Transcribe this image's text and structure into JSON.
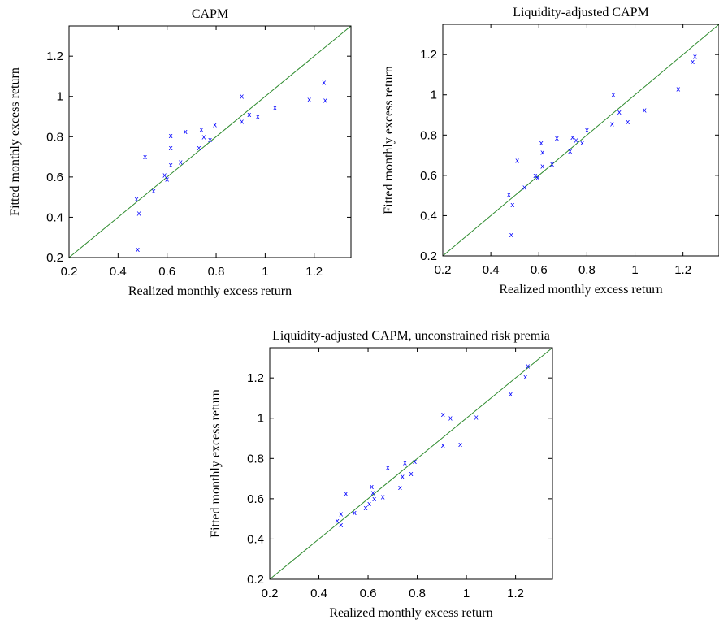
{
  "chart_data": [
    {
      "type": "scatter",
      "title": "CAPM",
      "xlabel": "Realized monthly excess return",
      "ylabel": "Fitted monthly excess return",
      "xlim": [
        0.2,
        1.35
      ],
      "ylim": [
        0.2,
        1.35
      ],
      "xticks": [
        "0.2",
        "0.4",
        "0.6",
        "0.8",
        "1",
        "1.2"
      ],
      "yticks": [
        "0.2",
        "0.4",
        "0.6",
        "0.8",
        "1",
        "1.2"
      ],
      "reference_line": "45-degree",
      "marker": "x",
      "points": [
        [
          0.475,
          0.49
        ],
        [
          0.485,
          0.42
        ],
        [
          0.48,
          0.24
        ],
        [
          0.51,
          0.7
        ],
        [
          0.545,
          0.53
        ],
        [
          0.59,
          0.61
        ],
        [
          0.6,
          0.59
        ],
        [
          0.615,
          0.66
        ],
        [
          0.615,
          0.745
        ],
        [
          0.615,
          0.805
        ],
        [
          0.655,
          0.675
        ],
        [
          0.675,
          0.825
        ],
        [
          0.73,
          0.745
        ],
        [
          0.74,
          0.835
        ],
        [
          0.75,
          0.8
        ],
        [
          0.775,
          0.785
        ],
        [
          0.795,
          0.86
        ],
        [
          0.905,
          0.875
        ],
        [
          0.905,
          1.0
        ],
        [
          0.935,
          0.91
        ],
        [
          0.97,
          0.9
        ],
        [
          1.04,
          0.945
        ],
        [
          1.18,
          0.985
        ],
        [
          1.24,
          1.07
        ],
        [
          1.245,
          0.98
        ]
      ]
    },
    {
      "type": "scatter",
      "title": "Liquidity-adjusted CAPM",
      "xlabel": "Realized monthly excess return",
      "ylabel": "Fitted monthly excess return",
      "xlim": [
        0.2,
        1.35
      ],
      "ylim": [
        0.2,
        1.35
      ],
      "xticks": [
        "0.2",
        "0.4",
        "0.6",
        "0.8",
        "1",
        "1.2"
      ],
      "yticks": [
        "0.2",
        "0.4",
        "0.6",
        "0.8",
        "1",
        "1.2"
      ],
      "reference_line": "45-degree",
      "marker": "x",
      "points": [
        [
          0.475,
          0.505
        ],
        [
          0.49,
          0.455
        ],
        [
          0.485,
          0.305
        ],
        [
          0.51,
          0.675
        ],
        [
          0.54,
          0.54
        ],
        [
          0.585,
          0.6
        ],
        [
          0.595,
          0.59
        ],
        [
          0.615,
          0.645
        ],
        [
          0.615,
          0.715
        ],
        [
          0.61,
          0.76
        ],
        [
          0.655,
          0.655
        ],
        [
          0.675,
          0.785
        ],
        [
          0.73,
          0.72
        ],
        [
          0.74,
          0.79
        ],
        [
          0.755,
          0.775
        ],
        [
          0.78,
          0.76
        ],
        [
          0.8,
          0.825
        ],
        [
          0.905,
          0.855
        ],
        [
          0.91,
          1.0
        ],
        [
          0.935,
          0.915
        ],
        [
          0.97,
          0.865
        ],
        [
          1.04,
          0.925
        ],
        [
          1.18,
          1.03
        ],
        [
          1.24,
          1.165
        ],
        [
          1.25,
          1.19
        ]
      ]
    },
    {
      "type": "scatter",
      "title": "Liquidity-adjusted CAPM, unconstrained risk premia",
      "xlabel": "Realized monthly excess return",
      "ylabel": "Fitted monthly excess return",
      "xlim": [
        0.2,
        1.35
      ],
      "ylim": [
        0.2,
        1.35
      ],
      "xticks": [
        "0.2",
        "0.4",
        "0.6",
        "0.8",
        "1",
        "1.2"
      ],
      "yticks": [
        "0.2",
        "0.4",
        "0.6",
        "0.8",
        "1",
        "1.2"
      ],
      "reference_line": "45-degree",
      "marker": "x",
      "points": [
        [
          0.475,
          0.49
        ],
        [
          0.49,
          0.525
        ],
        [
          0.49,
          0.47
        ],
        [
          0.51,
          0.625
        ],
        [
          0.545,
          0.53
        ],
        [
          0.59,
          0.555
        ],
        [
          0.605,
          0.575
        ],
        [
          0.615,
          0.66
        ],
        [
          0.62,
          0.63
        ],
        [
          0.625,
          0.6
        ],
        [
          0.66,
          0.61
        ],
        [
          0.68,
          0.755
        ],
        [
          0.73,
          0.655
        ],
        [
          0.74,
          0.71
        ],
        [
          0.75,
          0.78
        ],
        [
          0.775,
          0.725
        ],
        [
          0.79,
          0.785
        ],
        [
          0.905,
          0.865
        ],
        [
          0.905,
          1.02
        ],
        [
          0.935,
          1.0
        ],
        [
          0.975,
          0.87
        ],
        [
          1.04,
          1.005
        ],
        [
          1.18,
          1.12
        ],
        [
          1.24,
          1.205
        ],
        [
          1.25,
          1.26
        ]
      ]
    }
  ]
}
